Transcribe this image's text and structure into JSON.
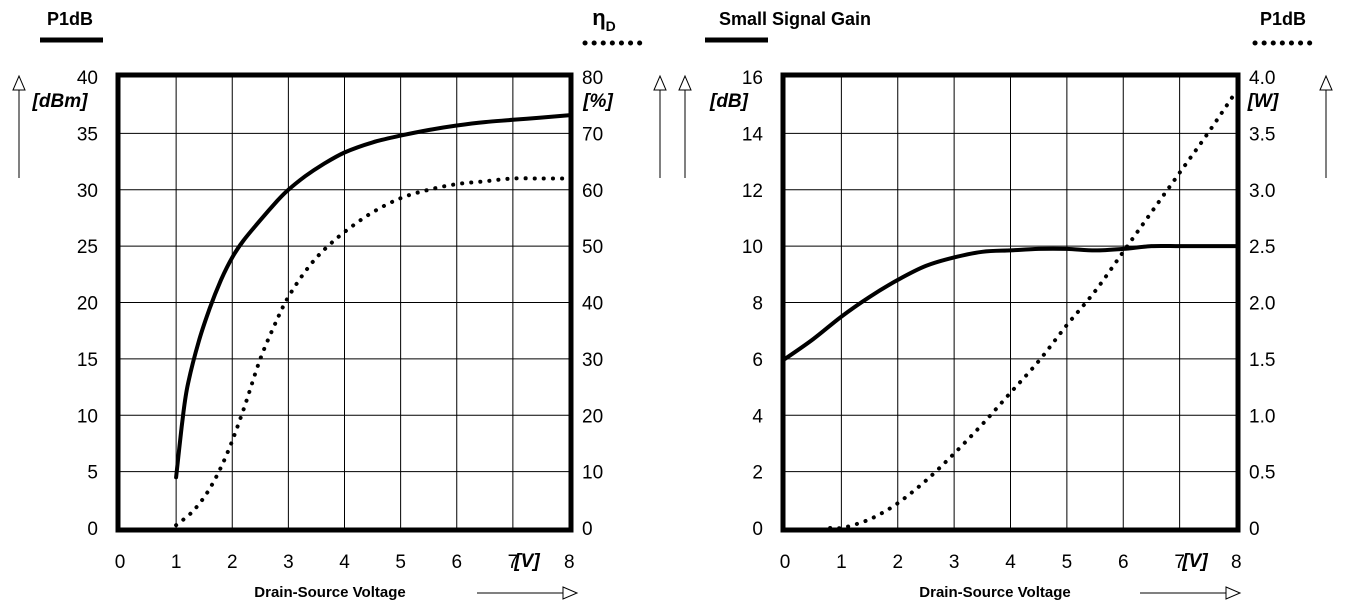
{
  "chart_data": [
    {
      "type": "line",
      "xlabel": "Drain-Source Voltage",
      "x_unit": "[V]",
      "xlim": [
        0,
        8
      ],
      "x_ticks": [
        "0",
        "1",
        "2",
        "3",
        "4",
        "5",
        "6",
        "7",
        "8"
      ],
      "left_axis": {
        "legend_label": "P1dB",
        "unit": "[dBm]",
        "ylim": [
          0,
          40
        ],
        "ticks": [
          "0",
          "5",
          "10",
          "15",
          "20",
          "25",
          "30",
          "35",
          "40"
        ]
      },
      "right_axis": {
        "legend_label": "η",
        "legend_subscript": "D",
        "unit": "[%]",
        "ylim": [
          0,
          80
        ],
        "ticks": [
          "0",
          "10",
          "20",
          "30",
          "40",
          "50",
          "60",
          "70",
          "80"
        ]
      },
      "grid": true,
      "series": [
        {
          "style": "solid",
          "axis": "left",
          "x": [
            1.0,
            1.1,
            1.2,
            1.4,
            1.6,
            1.8,
            2.0,
            2.2,
            2.5,
            2.8,
            3.0,
            3.3,
            3.6,
            4.0,
            4.5,
            5.0,
            5.5,
            6.0,
            6.5,
            7.0,
            7.5,
            8.0
          ],
          "y": [
            4.5,
            9.0,
            12.5,
            16.5,
            19.5,
            22.0,
            24.0,
            25.5,
            27.3,
            29.0,
            30.0,
            31.2,
            32.2,
            33.3,
            34.2,
            34.8,
            35.3,
            35.7,
            36.0,
            36.2,
            36.4,
            36.6
          ]
        },
        {
          "style": "dotted",
          "axis": "right",
          "x": [
            1.0,
            1.3,
            1.6,
            1.9,
            2.2,
            2.5,
            2.8,
            3.0,
            3.3,
            3.6,
            4.0,
            4.5,
            5.0,
            5.5,
            6.0,
            6.5,
            7.0,
            7.5,
            8.0
          ],
          "y": [
            0.5,
            3.0,
            7.0,
            13.0,
            21.0,
            30.0,
            37.0,
            41.0,
            45.5,
            49.0,
            52.5,
            56.0,
            58.5,
            60.0,
            61.0,
            61.5,
            62.0,
            62.0,
            62.0
          ]
        }
      ]
    },
    {
      "type": "line",
      "xlabel": "Drain-Source Voltage",
      "x_unit": "[V]",
      "xlim": [
        0,
        8
      ],
      "x_ticks": [
        "0",
        "1",
        "2",
        "3",
        "4",
        "5",
        "6",
        "7",
        "8"
      ],
      "left_axis": {
        "legend_label": "Small Signal Gain",
        "unit": "[dB]",
        "ylim": [
          0,
          16
        ],
        "ticks": [
          "0",
          "2",
          "4",
          "6",
          "8",
          "10",
          "12",
          "14",
          "16"
        ]
      },
      "right_axis": {
        "legend_label": "P1dB",
        "unit": "[W]",
        "ylim": [
          0,
          4.0
        ],
        "ticks": [
          "0",
          "0.5",
          "1.0",
          "1.5",
          "2.0",
          "2.5",
          "3.0",
          "3.5",
          "4.0"
        ]
      },
      "grid": true,
      "series": [
        {
          "style": "solid",
          "axis": "left",
          "x": [
            0.0,
            0.5,
            1.0,
            1.5,
            2.0,
            2.5,
            3.0,
            3.5,
            4.0,
            4.5,
            5.0,
            5.5,
            6.0,
            6.5,
            7.0,
            7.5,
            8.0
          ],
          "y": [
            6.0,
            6.7,
            7.5,
            8.2,
            8.8,
            9.3,
            9.6,
            9.8,
            9.85,
            9.9,
            9.9,
            9.85,
            9.9,
            10.0,
            10.0,
            10.0,
            10.0
          ]
        },
        {
          "style": "dotted",
          "axis": "right",
          "x": [
            0.8,
            1.0,
            1.3,
            1.6,
            2.0,
            2.5,
            3.0,
            3.5,
            4.0,
            4.5,
            5.0,
            5.5,
            6.0,
            6.5,
            7.0,
            7.5,
            8.0
          ],
          "y": [
            0.0,
            0.0,
            0.04,
            0.1,
            0.22,
            0.42,
            0.66,
            0.92,
            1.2,
            1.48,
            1.8,
            2.1,
            2.45,
            2.8,
            3.15,
            3.5,
            3.87
          ]
        }
      ]
    }
  ]
}
